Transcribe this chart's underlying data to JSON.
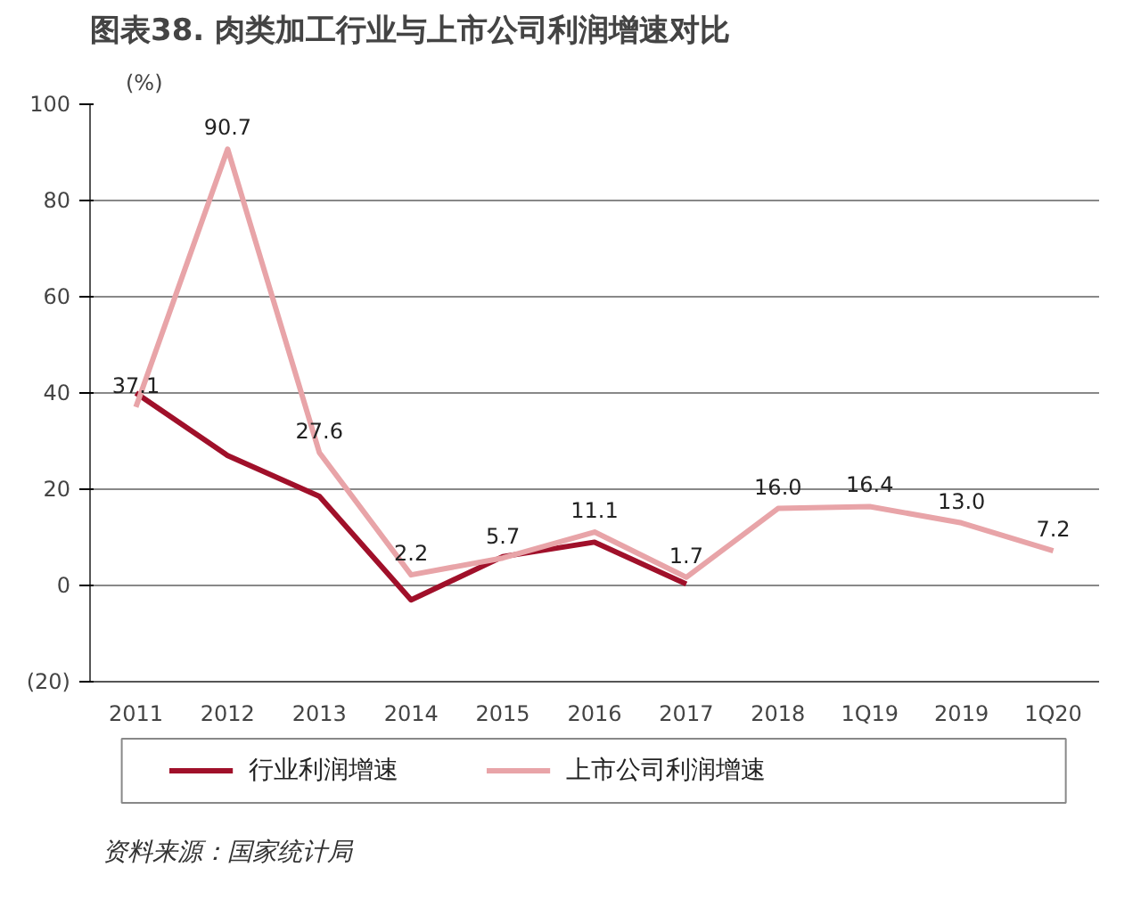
{
  "chart_data": {
    "type": "line",
    "title": "图表38. 肉类加工行业与上市公司利润增速对比",
    "ylabel": "(%)",
    "categories": [
      "2011",
      "2012",
      "2013",
      "2014",
      "2015",
      "2016",
      "2017",
      "2018",
      "1Q19",
      "2019",
      "1Q20"
    ],
    "series": [
      {
        "name": "行业利润增速",
        "color": "#a0102a",
        "values": [
          40,
          27,
          18.5,
          -3,
          6,
          9,
          0.3,
          null,
          null,
          null,
          null
        ]
      },
      {
        "name": "上市公司利润增速",
        "color": "#e8a4a8",
        "values": [
          37.1,
          90.7,
          27.6,
          2.2,
          5.7,
          11.1,
          1.7,
          16.0,
          16.4,
          13.0,
          7.2
        ],
        "value_labels": [
          "37.1",
          "90.7",
          "27.6",
          "2.2",
          "5.7",
          "11.1",
          "1.7",
          "16.0",
          "16.4",
          "13.0",
          "7.2"
        ]
      }
    ],
    "ylim": [
      -20,
      100
    ],
    "yticks": [
      {
        "value": -20,
        "label": "(20)"
      },
      0,
      20,
      40,
      60,
      80,
      100
    ],
    "grid": "y",
    "legend": "bottom",
    "marker": "none",
    "line_style": "solid",
    "annotations": [
      "资料来源：国家统计局"
    ]
  }
}
